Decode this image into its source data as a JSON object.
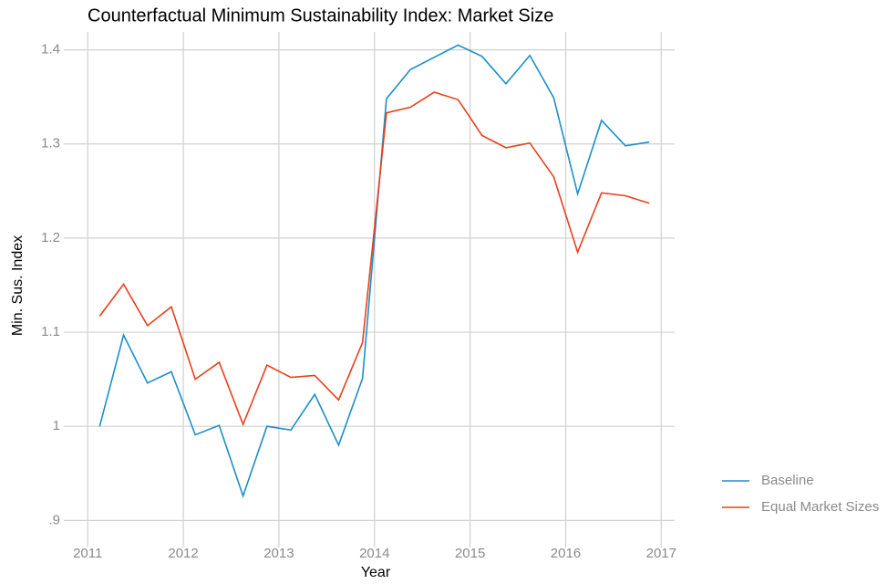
{
  "chart_data": {
    "type": "line",
    "title": "Counterfactual Minimum Sustainability Index: Market Size",
    "xlabel": "Year",
    "ylabel": "Min. Sus. Index",
    "x": [
      2011.125,
      2011.375,
      2011.625,
      2011.875,
      2012.125,
      2012.375,
      2012.625,
      2012.875,
      2013.125,
      2013.375,
      2013.625,
      2013.875,
      2014.125,
      2014.375,
      2014.625,
      2014.875,
      2015.125,
      2015.375,
      2015.625,
      2015.875,
      2016.125,
      2016.375,
      2016.625,
      2016.875
    ],
    "series": [
      {
        "name": "Baseline",
        "color": "#1a8fc8",
        "values": [
          1.0,
          1.097,
          1.046,
          1.058,
          0.991,
          1.001,
          0.926,
          1.0,
          0.996,
          1.034,
          0.98,
          1.051,
          1.348,
          1.379,
          1.392,
          1.405,
          1.393,
          1.364,
          1.394,
          1.349,
          1.247,
          1.325,
          1.298,
          1.302
        ]
      },
      {
        "name": "Equal Market Sizes",
        "color": "#e8401c",
        "values": [
          1.117,
          1.151,
          1.107,
          1.127,
          1.05,
          1.068,
          1.002,
          1.065,
          1.052,
          1.054,
          1.028,
          1.089,
          1.333,
          1.339,
          1.355,
          1.347,
          1.309,
          1.296,
          1.301,
          1.265,
          1.185,
          1.248,
          1.245,
          1.237
        ]
      }
    ],
    "xlim": [
      2010.75,
      2017.14
    ],
    "xticks": [
      2011,
      2012,
      2013,
      2014,
      2015,
      2016,
      2017
    ],
    "ylim": [
      0.879,
      1.419
    ],
    "yticks": [
      {
        "value": 0.9,
        "label": ".9"
      },
      1,
      1.1,
      1.2,
      1.3,
      1.4
    ],
    "grid": true,
    "legend": "right"
  }
}
